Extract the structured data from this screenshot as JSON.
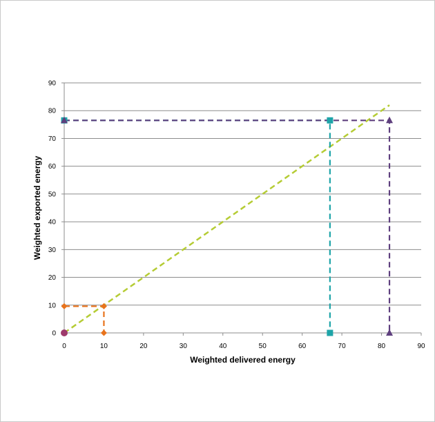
{
  "chart_data": {
    "type": "line",
    "title": "",
    "xlabel": "Weighted delivered energy",
    "ylabel": "Weighted exported energy",
    "xlim": [
      0,
      90
    ],
    "ylim": [
      0,
      90
    ],
    "x_ticks": [
      0,
      10,
      20,
      30,
      40,
      50,
      60,
      70,
      80,
      90
    ],
    "y_ticks": [
      0,
      10,
      20,
      30,
      40,
      50,
      60,
      70,
      80,
      90
    ],
    "grid": "horizontal",
    "legend": "none",
    "diagonal": {
      "color": "#b5cc34",
      "style": "dashed",
      "points": [
        [
          0,
          0
        ],
        [
          82,
          82
        ]
      ]
    },
    "series": [
      {
        "color": "#e8731c",
        "marker": "diamond",
        "points": [
          [
            0,
            9.6
          ],
          [
            10,
            9.6
          ],
          [
            10,
            0
          ]
        ]
      },
      {
        "color": "#1ea4a8",
        "marker": "square",
        "points": [
          [
            0,
            76.5
          ],
          [
            67,
            76.5
          ],
          [
            67,
            0
          ]
        ]
      },
      {
        "color": "#5e3f7e",
        "marker": "triangle",
        "points": [
          [
            0,
            76.5
          ],
          [
            82,
            76.5
          ],
          [
            82,
            0
          ]
        ]
      },
      {
        "color": "#9e3a6b",
        "marker": "circle",
        "points": [
          [
            0,
            0
          ]
        ]
      }
    ]
  }
}
